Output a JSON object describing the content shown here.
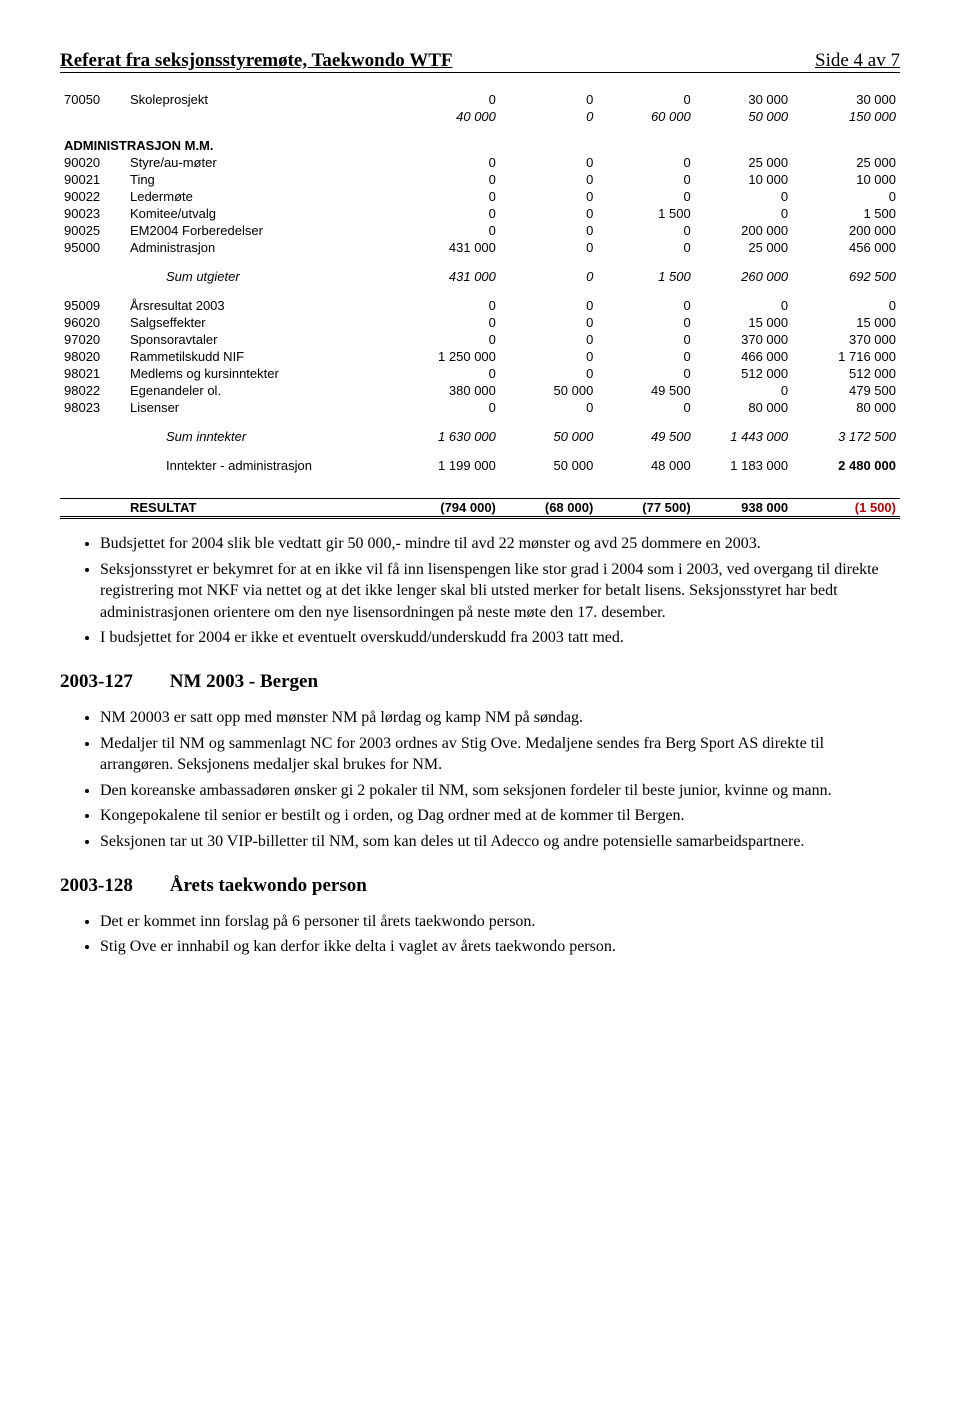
{
  "header": {
    "title": "Referat fra seksjonsstyremøte, Taekwondo WTF",
    "page": "Side 4 av 7"
  },
  "numeric_columns": 4,
  "budget_rows": [
    {
      "code": "70050",
      "label": "Skoleprosjekt",
      "c": [
        "0",
        "0",
        "0",
        "30 000"
      ],
      "t": "30 000"
    },
    {
      "code": "",
      "label": "",
      "c": [
        "40 000",
        "0",
        "60 000",
        "50 000"
      ],
      "t": "150 000",
      "italic": true
    },
    {
      "spacer": true
    },
    {
      "code": "",
      "label": "ADMINISTRASJON M.M.",
      "section": true
    },
    {
      "code": "90020",
      "label": "Styre/au-møter",
      "c": [
        "0",
        "0",
        "0",
        "25 000"
      ],
      "t": "25 000"
    },
    {
      "code": "90021",
      "label": "Ting",
      "c": [
        "0",
        "0",
        "0",
        "10 000"
      ],
      "t": "10 000"
    },
    {
      "code": "90022",
      "label": "Ledermøte",
      "c": [
        "0",
        "0",
        "0",
        "0"
      ],
      "t": "0"
    },
    {
      "code": "90023",
      "label": "Komitee/utvalg",
      "c": [
        "0",
        "0",
        "1 500",
        "0"
      ],
      "t": "1 500"
    },
    {
      "code": "90025",
      "label": "EM2004 Forberedelser",
      "c": [
        "0",
        "0",
        "0",
        "200 000"
      ],
      "t": "200 000"
    },
    {
      "code": "95000",
      "label": "Administrasjon",
      "c": [
        "431 000",
        "0",
        "0",
        "25 000"
      ],
      "t": "456 000"
    },
    {
      "spacer": true
    },
    {
      "code": "",
      "label": "Sum utgieter",
      "c": [
        "431 000",
        "0",
        "1 500",
        "260 000"
      ],
      "t": "692 500",
      "italic": true,
      "indent": true
    },
    {
      "spacer": true
    },
    {
      "code": "95009",
      "label": "Årsresultat 2003",
      "c": [
        "0",
        "0",
        "0",
        "0"
      ],
      "t": "0"
    },
    {
      "code": "96020",
      "label": "Salgseffekter",
      "c": [
        "0",
        "0",
        "0",
        "15 000"
      ],
      "t": "15 000"
    },
    {
      "code": "97020",
      "label": "Sponsoravtaler",
      "c": [
        "0",
        "0",
        "0",
        "370 000"
      ],
      "t": "370 000"
    },
    {
      "code": "98020",
      "label": "Rammetilskudd NIF",
      "c": [
        "1 250 000",
        "0",
        "0",
        "466 000"
      ],
      "t": "1 716 000"
    },
    {
      "code": "98021",
      "label": "Medlems og kursinntekter",
      "c": [
        "0",
        "0",
        "0",
        "512 000"
      ],
      "t": "512 000"
    },
    {
      "code": "98022",
      "label": "Egenandeler ol.",
      "c": [
        "380 000",
        "50 000",
        "49 500",
        "0"
      ],
      "t": "479 500"
    },
    {
      "code": "98023",
      "label": "Lisenser",
      "c": [
        "0",
        "0",
        "0",
        "80 000"
      ],
      "t": "80 000"
    },
    {
      "spacer": true
    },
    {
      "code": "",
      "label": "Sum inntekter",
      "c": [
        "1 630 000",
        "50 000",
        "49 500",
        "1 443 000"
      ],
      "t": "3 172 500",
      "italic": true,
      "indent": true
    },
    {
      "spacer": true
    },
    {
      "code": "",
      "label": "Inntekter - administrasjon",
      "c": [
        "1 199 000",
        "50 000",
        "48 000",
        "1 183 000"
      ],
      "t": "2 480 000",
      "indent": true,
      "bold_total": true
    },
    {
      "spacer": true
    },
    {
      "spacer": true
    }
  ],
  "result_row": {
    "label": "RESULTAT",
    "c": [
      "(794 000)",
      "(68 000)",
      "(77 500)",
      "938 000"
    ],
    "t": "(1 500)"
  },
  "bullets_1": [
    "Budsjettet for 2004 slik ble vedtatt gir 50 000,- mindre til avd 22 mønster og avd 25 dommere en 2003.",
    "Seksjonsstyret er bekymret for at en ikke vil få inn lisenspengen like stor grad i 2004 som i 2003, ved overgang til direkte registrering mot NKF via nettet og at det ikke lenger skal bli utsted merker for betalt lisens. Seksjonsstyret har bedt administrasjonen orientere om den nye lisensordningen på neste møte den 17. desember.",
    "I budsjettet for 2004 er ikke et eventuelt overskudd/underskudd fra 2003 tatt med."
  ],
  "section_127": {
    "num": "2003-127",
    "title": "NM 2003 - Bergen"
  },
  "bullets_2": [
    "NM 20003 er satt opp med mønster NM på lørdag og kamp NM på søndag.",
    "Medaljer til NM og sammenlagt NC for 2003 ordnes av Stig Ove. Medaljene sendes fra Berg Sport AS direkte til arrangøren. Seksjonens medaljer skal brukes for NM.",
    "Den koreanske ambassadøren ønsker gi 2 pokaler til NM, som seksjonen fordeler til beste junior, kvinne og mann.",
    "Kongepokalene til senior er bestilt og i orden, og Dag ordner med at de kommer til Bergen.",
    "Seksjonen tar ut 30 VIP-billetter til NM, som kan deles ut til Adecco og andre potensielle samarbeidspartnere."
  ],
  "section_128": {
    "num": "2003-128",
    "title": "Årets taekwondo person"
  },
  "bullets_3": [
    "Det er kommet inn forslag på 6 personer til årets taekwondo person.",
    "Stig Ove er innhabil og kan derfor ikke delta i vaglet av årets taekwondo person."
  ]
}
